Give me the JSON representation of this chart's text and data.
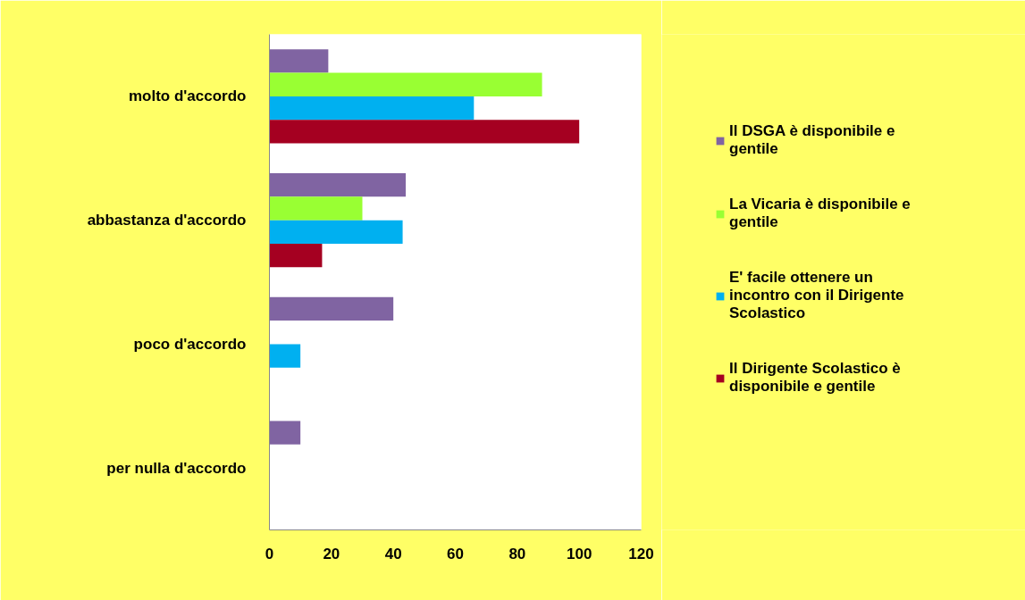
{
  "chart_data": {
    "type": "bar",
    "orientation": "horizontal",
    "categories": [
      "molto d'accordo",
      "abbastanza d'accordo",
      "poco d'accordo",
      "per nulla d'accordo"
    ],
    "series": [
      {
        "name": "Il DSGA è disponibile e gentile",
        "color": "#8064a2",
        "values": [
          19,
          44,
          40,
          10
        ]
      },
      {
        "name": "La Vicaria è disponibile e gentile",
        "color": "#99ff33",
        "values": [
          88,
          30,
          0,
          0
        ]
      },
      {
        "name": "E' facile ottenere un incontro con il Dirigente Scolastico",
        "color": "#00b0f0",
        "values": [
          66,
          43,
          10,
          0
        ]
      },
      {
        "name": "Il Dirigente Scolastico è disponibile e gentile",
        "color": "#a50021",
        "values": [
          100,
          17,
          0,
          0
        ]
      }
    ],
    "xlim": [
      0,
      120
    ],
    "xticks": [
      0,
      20,
      40,
      60,
      80,
      100,
      120
    ],
    "grid": false,
    "legend": "right"
  }
}
